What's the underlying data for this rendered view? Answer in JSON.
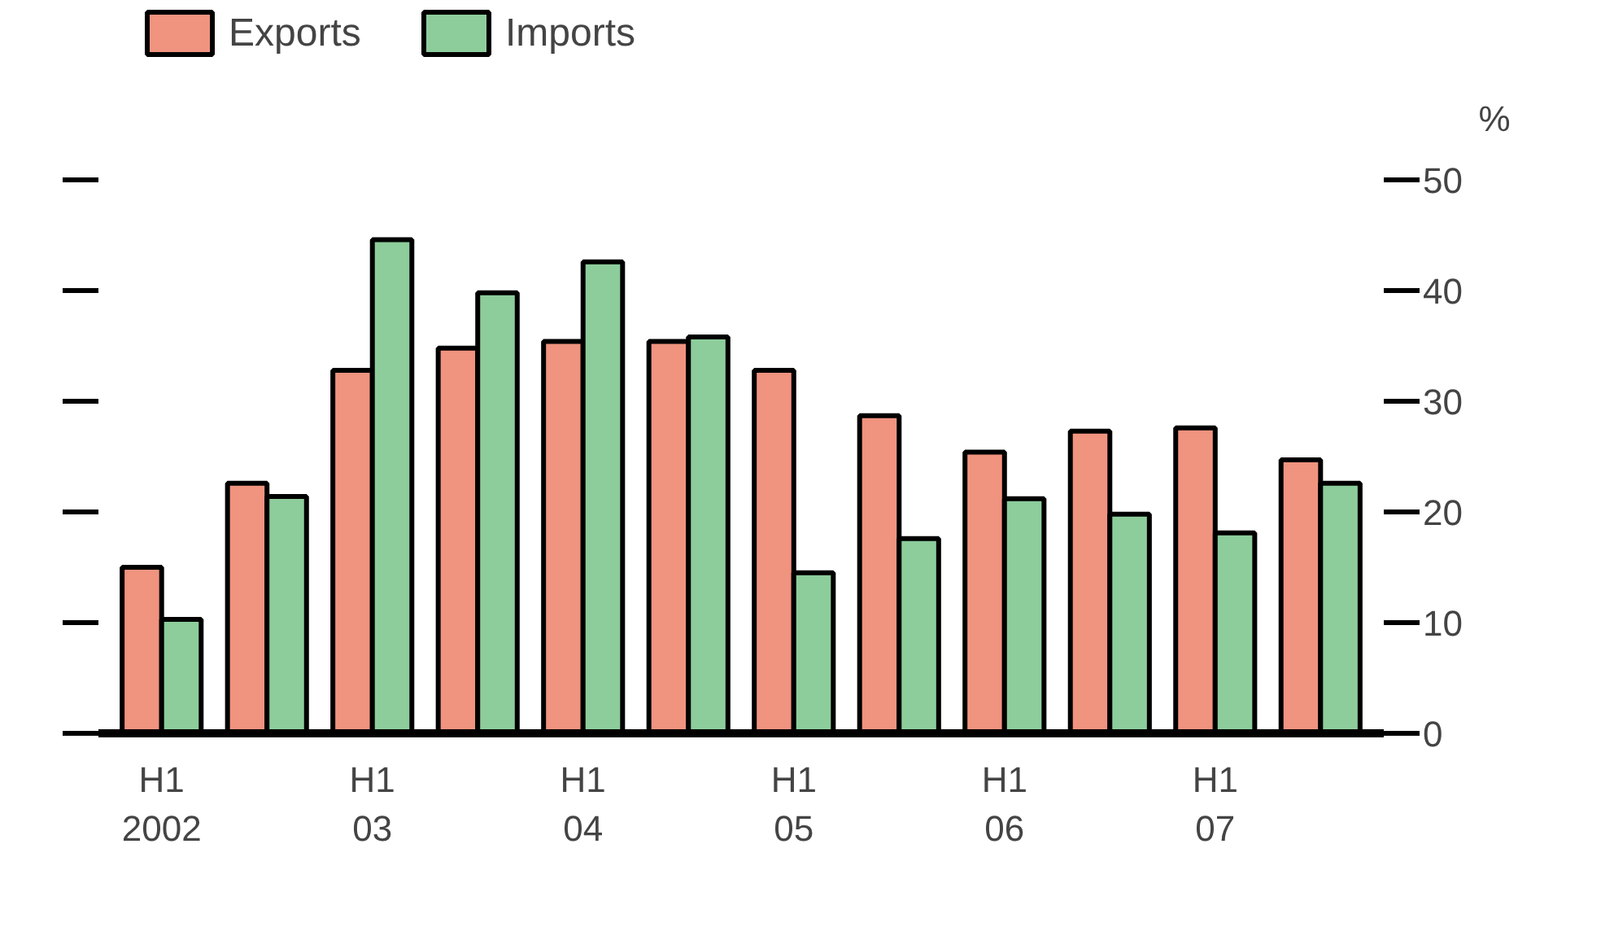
{
  "chart_data": {
    "type": "bar",
    "ylabel": "%",
    "categories": [
      "H1\n2002",
      null,
      "H1\n03",
      null,
      "H1\n04",
      null,
      "H1\n05",
      null,
      "H1\n06",
      null,
      "H1\n07",
      null
    ],
    "series": [
      {
        "name": "Exports",
        "color": "#f0937f",
        "values": [
          15.0,
          22.6,
          32.8,
          34.8,
          35.4,
          35.4,
          32.8,
          28.7,
          25.4,
          27.3,
          27.6,
          24.7
        ]
      },
      {
        "name": "Imports",
        "color": "#8dcd9b",
        "values": [
          10.3,
          21.4,
          44.6,
          39.8,
          42.6,
          35.8,
          14.5,
          17.6,
          21.2,
          19.8,
          18.1,
          22.6
        ]
      }
    ],
    "ylim": [
      0,
      50
    ],
    "yticks": [
      0,
      10,
      20,
      30,
      40,
      50
    ],
    "grid": false,
    "legend": "top left"
  }
}
